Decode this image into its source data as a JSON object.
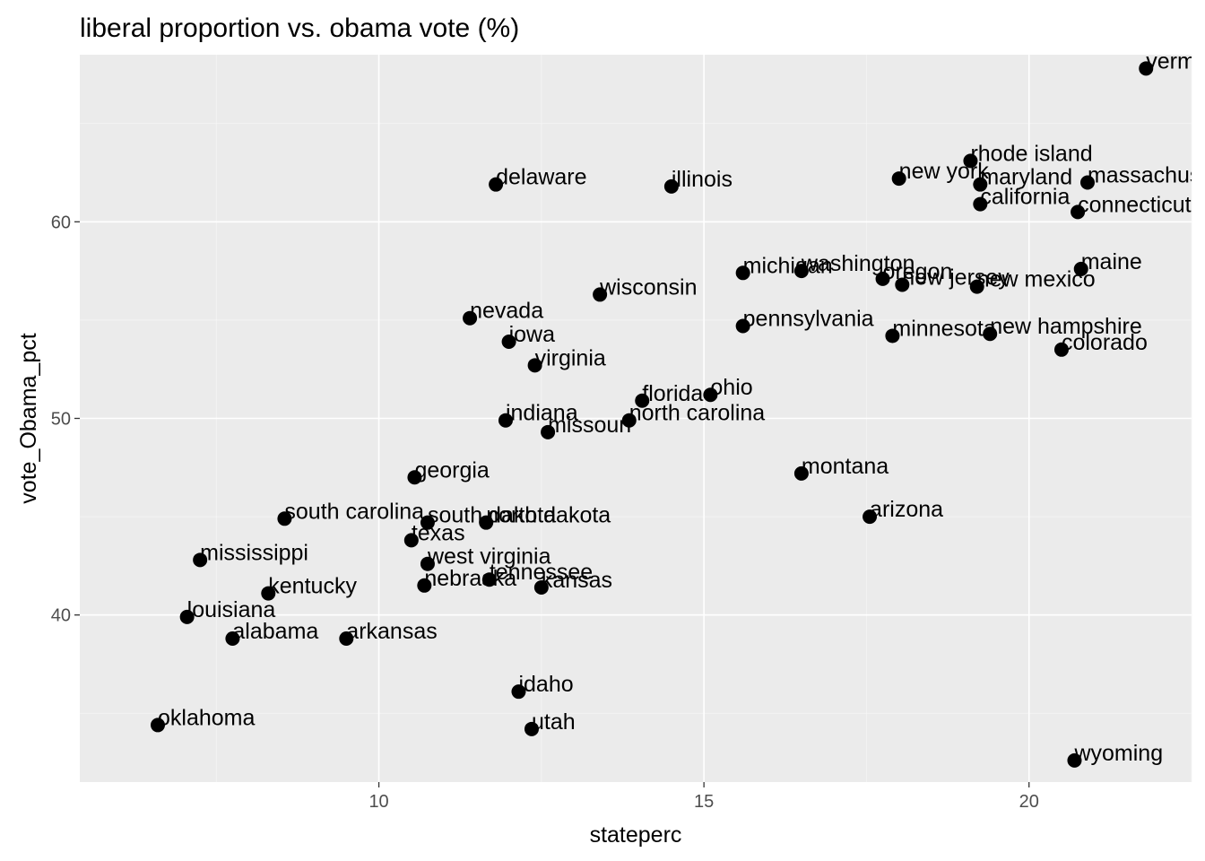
{
  "chart_data": {
    "type": "scatter",
    "title": "liberal proportion vs. obama vote (%)",
    "xlabel": "stateperc",
    "ylabel": "vote_Obama_pct",
    "xlim": [
      5.4,
      22.5
    ],
    "ylim": [
      31.5,
      68.5
    ],
    "x_ticks": [
      10,
      15,
      20
    ],
    "y_ticks": [
      40,
      50,
      60
    ],
    "x_tick_labels": [
      "10",
      "15",
      "20"
    ],
    "y_tick_labels": [
      "40",
      "50",
      "60"
    ],
    "grid": true,
    "legend": "none",
    "colors": {
      "panel_background": "#ebebeb",
      "grid_major": "#ffffff",
      "grid_minor": "#f5f5f5",
      "point": "#000000",
      "tick": "#333333",
      "tick_label": "#4d4d4d"
    },
    "points": [
      {
        "label": "vermont",
        "x": 21.8,
        "y": 67.8
      },
      {
        "label": "rhode island",
        "x": 19.1,
        "y": 63.1
      },
      {
        "label": "new york",
        "x": 18.0,
        "y": 62.2
      },
      {
        "label": "maryland",
        "x": 19.25,
        "y": 61.9
      },
      {
        "label": "massachusetts",
        "x": 20.9,
        "y": 62.0
      },
      {
        "label": "delaware",
        "x": 11.8,
        "y": 61.9
      },
      {
        "label": "illinois",
        "x": 14.5,
        "y": 61.8
      },
      {
        "label": "california",
        "x": 19.25,
        "y": 60.9
      },
      {
        "label": "connecticut",
        "x": 20.75,
        "y": 60.5
      },
      {
        "label": "michigan",
        "x": 15.6,
        "y": 57.4
      },
      {
        "label": "washington",
        "x": 16.5,
        "y": 57.5
      },
      {
        "label": "oregon",
        "x": 17.75,
        "y": 57.1
      },
      {
        "label": "new jersey",
        "x": 18.05,
        "y": 56.8
      },
      {
        "label": "new mexico",
        "x": 19.2,
        "y": 56.7
      },
      {
        "label": "maine",
        "x": 20.8,
        "y": 57.6
      },
      {
        "label": "wisconsin",
        "x": 13.4,
        "y": 56.3
      },
      {
        "label": "nevada",
        "x": 11.4,
        "y": 55.1
      },
      {
        "label": "pennsylvania",
        "x": 15.6,
        "y": 54.7
      },
      {
        "label": "minnesota",
        "x": 17.9,
        "y": 54.2
      },
      {
        "label": "new hampshire",
        "x": 19.4,
        "y": 54.3
      },
      {
        "label": "colorado",
        "x": 20.5,
        "y": 53.5
      },
      {
        "label": "iowa",
        "x": 12.0,
        "y": 53.9
      },
      {
        "label": "virginia",
        "x": 12.4,
        "y": 52.7
      },
      {
        "label": "florida",
        "x": 14.05,
        "y": 50.9
      },
      {
        "label": "ohio",
        "x": 15.1,
        "y": 51.2
      },
      {
        "label": "indiana",
        "x": 11.95,
        "y": 49.9
      },
      {
        "label": "north carolina",
        "x": 13.85,
        "y": 49.9
      },
      {
        "label": "missouri",
        "x": 12.6,
        "y": 49.3
      },
      {
        "label": "georgia",
        "x": 10.55,
        "y": 47.0
      },
      {
        "label": "montana",
        "x": 16.5,
        "y": 47.2
      },
      {
        "label": "south carolina",
        "x": 8.55,
        "y": 44.9
      },
      {
        "label": "south dakota",
        "x": 10.75,
        "y": 44.7
      },
      {
        "label": "north dakota",
        "x": 11.65,
        "y": 44.7
      },
      {
        "label": "arizona",
        "x": 17.55,
        "y": 45.0
      },
      {
        "label": "texas",
        "x": 10.5,
        "y": 43.8
      },
      {
        "label": "mississippi",
        "x": 7.25,
        "y": 42.8
      },
      {
        "label": "west virginia",
        "x": 10.75,
        "y": 42.6
      },
      {
        "label": "tennessee",
        "x": 11.7,
        "y": 41.8
      },
      {
        "label": "nebraska",
        "x": 10.7,
        "y": 41.5
      },
      {
        "label": "kansas",
        "x": 12.5,
        "y": 41.4
      },
      {
        "label": "kentucky",
        "x": 8.3,
        "y": 41.1
      },
      {
        "label": "louisiana",
        "x": 7.05,
        "y": 39.9
      },
      {
        "label": "alabama",
        "x": 7.75,
        "y": 38.8
      },
      {
        "label": "arkansas",
        "x": 9.5,
        "y": 38.8
      },
      {
        "label": "idaho",
        "x": 12.15,
        "y": 36.1
      },
      {
        "label": "oklahoma",
        "x": 6.6,
        "y": 34.4
      },
      {
        "label": "utah",
        "x": 12.35,
        "y": 34.2
      },
      {
        "label": "wyoming",
        "x": 20.7,
        "y": 32.6
      }
    ]
  }
}
